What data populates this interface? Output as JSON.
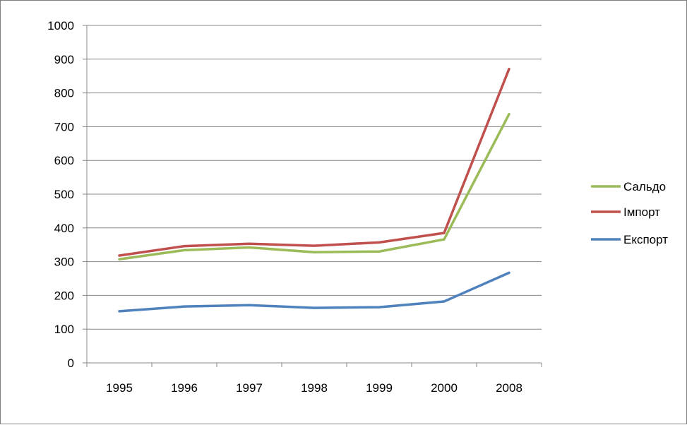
{
  "chart_data": {
    "type": "line",
    "title": "",
    "xlabel": "",
    "ylabel": "",
    "categories": [
      "1995",
      "1996",
      "1997",
      "1998",
      "1999",
      "2000",
      "2008"
    ],
    "ylim": [
      0,
      1000
    ],
    "yticks": [
      0,
      100,
      200,
      300,
      400,
      500,
      600,
      700,
      800,
      900,
      1000
    ],
    "grid": true,
    "legend_position": "right",
    "series": [
      {
        "name": "Сальдо",
        "color": "#9bbb59",
        "values": [
          307,
          334,
          342,
          328,
          330,
          366,
          737
        ]
      },
      {
        "name": "Імпорт",
        "color": "#c0504d",
        "values": [
          318,
          346,
          353,
          347,
          357,
          385,
          871
        ]
      },
      {
        "name": "Експорт",
        "color": "#4f81bd",
        "values": [
          153,
          167,
          171,
          163,
          165,
          182,
          267
        ]
      }
    ]
  }
}
